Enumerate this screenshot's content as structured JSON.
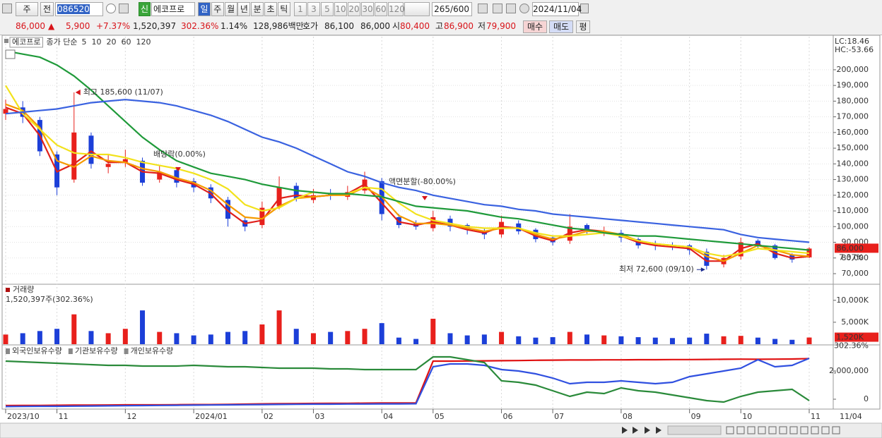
{
  "toolbar": {
    "market": "주",
    "mode": "전",
    "code": "086520",
    "badge": "신",
    "name": "에코프로",
    "periods": [
      "일",
      "주",
      "월",
      "년",
      "분",
      "초",
      "틱"
    ],
    "intervals": [
      "1",
      "3",
      "5",
      "10",
      "20",
      "30",
      "60",
      "120"
    ],
    "count": "265/600",
    "date": "2024/11/04"
  },
  "quote": {
    "items": [
      "86,000",
      "▲",
      "5,900",
      "+7.37%",
      "1,520,397",
      "302.36%",
      "1.14%",
      "128,986백만",
      "호가",
      "86,100",
      "86,000",
      "시",
      "80,400",
      "고",
      "86,900",
      "저",
      "79,900"
    ],
    "buttons": [
      "매수",
      "매도",
      "평"
    ]
  },
  "chart_data": [
    {
      "type": "candlestick",
      "title": "에코프로",
      "legend_title": "종가 단순",
      "lc_label": "LC:18.46",
      "hc_label": "HC:-53.66",
      "high_label": "최고 185,600 (11/07)",
      "low_label": "최저 72,600 (09/10)",
      "events": [
        "배당락(0.00%)",
        "액면분할(-80.00%)"
      ],
      "last_price_label": "86,000",
      "last_change_label": "7.37%",
      "cursor_date": "11/04",
      "up_color": "#e8201c",
      "down_color": "#1c3fd8",
      "grid": true,
      "categories": [
        "2023/10",
        null,
        null,
        "11",
        null,
        null,
        null,
        "12",
        null,
        null,
        null,
        "2024/01",
        null,
        null,
        null,
        "02",
        null,
        null,
        "03",
        null,
        null,
        null,
        "04",
        null,
        null,
        "05",
        null,
        null,
        null,
        "06",
        null,
        null,
        "07",
        null,
        null,
        null,
        "08",
        null,
        null,
        null,
        "09",
        null,
        null,
        "10",
        null,
        null,
        null,
        "11"
      ],
      "open": [
        172000,
        176000,
        168000,
        146000,
        130000,
        158000,
        138000,
        141000,
        142000,
        130000,
        136000,
        129000,
        125000,
        117000,
        104000,
        101000,
        113000,
        126000,
        117000,
        121000,
        119000,
        123000,
        129000,
        106000,
        102000,
        99000,
        105000,
        101000,
        97000,
        95000,
        102000,
        98000,
        93000,
        91000,
        101000,
        97000,
        96000,
        92000,
        89000,
        88000,
        88000,
        84000,
        76000,
        81000,
        91000,
        88000,
        82000,
        80400
      ],
      "high": [
        181000,
        180000,
        170000,
        148000,
        185600,
        160000,
        146000,
        149000,
        144000,
        139000,
        138000,
        131000,
        127000,
        119000,
        106000,
        116000,
        132000,
        128000,
        124000,
        124000,
        126000,
        135000,
        131000,
        108000,
        104000,
        110000,
        107000,
        102000,
        99000,
        107000,
        104000,
        99000,
        94000,
        108000,
        102000,
        100000,
        98000,
        93000,
        91000,
        90000,
        89000,
        86000,
        82000,
        93000,
        92000,
        89000,
        83000,
        86900
      ],
      "low": [
        168000,
        166000,
        145000,
        120000,
        128000,
        137000,
        134000,
        138000,
        126000,
        128000,
        125000,
        122000,
        115000,
        100000,
        97000,
        99000,
        111000,
        116000,
        115000,
        117000,
        117000,
        121000,
        104000,
        99000,
        98000,
        97000,
        97000,
        95000,
        92000,
        93000,
        95000,
        90000,
        88000,
        89000,
        95000,
        94000,
        90000,
        86000,
        85000,
        85000,
        82000,
        72600,
        74000,
        79000,
        86000,
        79000,
        77000,
        79900
      ],
      "close": [
        175000,
        170000,
        148000,
        125000,
        160000,
        140000,
        140000,
        143000,
        128000,
        135000,
        128000,
        125000,
        118000,
        105000,
        100000,
        112000,
        125000,
        118000,
        120000,
        120000,
        122000,
        130000,
        108000,
        101000,
        100000,
        106000,
        100000,
        98000,
        95000,
        103000,
        97000,
        92000,
        90000,
        100000,
        98000,
        97000,
        93000,
        88000,
        88000,
        87000,
        85000,
        75000,
        80000,
        90000,
        88000,
        80000,
        79000,
        86000
      ],
      "series": [
        {
          "name": "5",
          "color": "#e0201b",
          "values": [
            176000,
            172000,
            158000,
            135000,
            140000,
            148000,
            141000,
            141000,
            135000,
            134000,
            130000,
            127000,
            121000,
            110000,
            102000,
            104000,
            118000,
            120000,
            119000,
            120000,
            121000,
            127000,
            115000,
            103000,
            101000,
            103000,
            101000,
            98000,
            96000,
            100000,
            99000,
            94000,
            91000,
            96000,
            98000,
            97000,
            94000,
            90000,
            88000,
            87000,
            86000,
            78000,
            78000,
            86000,
            89000,
            83000,
            80000,
            81000
          ]
        },
        {
          "name": "10",
          "color": "#f59a00",
          "values": [
            178000,
            174000,
            163000,
            142000,
            138000,
            145000,
            142000,
            141000,
            137000,
            135000,
            131000,
            128000,
            123000,
            114000,
            106000,
            105000,
            113000,
            118000,
            119000,
            120000,
            120000,
            125000,
            119000,
            107000,
            102000,
            102000,
            101000,
            99000,
            97000,
            99000,
            99000,
            95000,
            92000,
            94000,
            97000,
            97000,
            95000,
            91000,
            89000,
            88000,
            87000,
            81000,
            78000,
            83000,
            88000,
            85000,
            82000,
            81000
          ]
        },
        {
          "name": "20",
          "color": "#f2e21c",
          "values": [
            190000,
            172000,
            162000,
            152000,
            147000,
            146000,
            146000,
            144000,
            141000,
            139000,
            137000,
            134000,
            130000,
            124000,
            114000,
            110000,
            112000,
            118000,
            122000,
            121000,
            121000,
            125000,
            124000,
            115000,
            108000,
            104000,
            102000,
            100000,
            99000,
            99000,
            99000,
            96000,
            94000,
            94000,
            95000,
            96000,
            94000,
            91000,
            89000,
            88000,
            87000,
            83000,
            81000,
            83000,
            86000,
            85000,
            84000,
            83000
          ]
        },
        {
          "name": "60",
          "color": "#1f9a3a",
          "values": [
            212000,
            210000,
            208000,
            203000,
            196000,
            187000,
            177000,
            167000,
            157000,
            149000,
            142000,
            138000,
            134000,
            132000,
            130000,
            127000,
            125000,
            123000,
            122000,
            121000,
            121000,
            120000,
            119000,
            116000,
            113000,
            112000,
            111000,
            110000,
            108000,
            106000,
            105000,
            103000,
            101000,
            99000,
            98000,
            96000,
            95000,
            94000,
            94000,
            93000,
            92000,
            91000,
            90000,
            89000,
            88000,
            87000,
            86000,
            85000
          ]
        },
        {
          "name": "120",
          "color": "#3a62e0",
          "values": [
            172000,
            173000,
            174000,
            175000,
            177000,
            179000,
            180000,
            181000,
            180000,
            179000,
            177000,
            174000,
            171000,
            167000,
            162000,
            157000,
            154000,
            150000,
            145000,
            140000,
            135000,
            132000,
            128000,
            125000,
            123000,
            120000,
            118000,
            116000,
            114000,
            113000,
            111000,
            110000,
            108000,
            107000,
            106000,
            105000,
            104000,
            103000,
            102000,
            101000,
            100000,
            99000,
            98000,
            95000,
            93000,
            92000,
            91000,
            90000
          ]
        }
      ],
      "ylim": [
        63700,
        221100
      ],
      "yticks": [
        {
          "value": 70000,
          "label": "70,000"
        },
        {
          "value": 80000,
          "label": "80,000"
        },
        {
          "value": 90000,
          "label": "90,000"
        },
        {
          "value": 100000,
          "label": "100,000"
        },
        {
          "value": 110000,
          "label": "110,000"
        },
        {
          "value": 120000,
          "label": "120,000"
        },
        {
          "value": 130000,
          "label": "130,000"
        },
        {
          "value": 140000,
          "label": "140,000"
        },
        {
          "value": 150000,
          "label": "150,000"
        },
        {
          "value": 160000,
          "label": "160,000"
        },
        {
          "value": 170000,
          "label": "170,000"
        },
        {
          "value": 180000,
          "label": "180,000"
        },
        {
          "value": 190000,
          "label": "190,000"
        },
        {
          "value": 200000,
          "label": "200,000"
        }
      ]
    },
    {
      "type": "bar",
      "title": "거래량",
      "subtitle": "1,520,397주(302.36%)",
      "ratio_label": "302.36%",
      "values": [
        2200,
        2500,
        3000,
        3500,
        6800,
        3000,
        2500,
        3500,
        7700,
        2800,
        2500,
        2000,
        2200,
        2800,
        3000,
        4500,
        7700,
        3500,
        2500,
        2800,
        3000,
        3500,
        4800,
        1500,
        1200,
        5800,
        2500,
        2000,
        2200,
        2800,
        1800,
        1500,
        1600,
        2800,
        2200,
        2000,
        1800,
        1600,
        1500,
        1400,
        1500,
        2400,
        1800,
        1900,
        1500,
        1200,
        1000,
        1520
      ],
      "value_labels": [
        null,
        null,
        null,
        null,
        null,
        null,
        null,
        null,
        null,
        null,
        null,
        null,
        null,
        null,
        null,
        null,
        null,
        null,
        null,
        null,
        null,
        null,
        null,
        null,
        null,
        null,
        null,
        null,
        null,
        null,
        null,
        null,
        null,
        null,
        null,
        null,
        null,
        null,
        null,
        null,
        null,
        null,
        null,
        null,
        null,
        null,
        null,
        "1,520K"
      ],
      "ylim": [
        0,
        13500
      ],
      "yticks": [
        {
          "value": 5000,
          "label": "5,000K"
        },
        {
          "value": 10000,
          "label": "10,000K"
        }
      ]
    },
    {
      "type": "line",
      "series": [
        {
          "name": "외국인보유수량",
          "color": "#e01010",
          "values": [
            -450000,
            -440000,
            -440000,
            -430000,
            -420000,
            -420000,
            -410000,
            -400000,
            -400000,
            -400000,
            -390000,
            -380000,
            -380000,
            -370000,
            -350000,
            -330000,
            -320000,
            -310000,
            -300000,
            -290000,
            -290000,
            -280000,
            -270000,
            -270000,
            -260000,
            2700000,
            2700000,
            2710000,
            2720000,
            2730000,
            2740000,
            2760000,
            2770000,
            2780000,
            2780000,
            2790000,
            2790000,
            2800000,
            2800000,
            2810000,
            2810000,
            2820000,
            2830000,
            2840000,
            2830000,
            2840000,
            2850000,
            2880000
          ]
        },
        {
          "name": "기관보유수량",
          "color": "#3050e0",
          "values": [
            -520000,
            -510000,
            -500000,
            -500000,
            -490000,
            -480000,
            -470000,
            -460000,
            -450000,
            -440000,
            -430000,
            -420000,
            -410000,
            -400000,
            -390000,
            -380000,
            -370000,
            -360000,
            -350000,
            -350000,
            -340000,
            -340000,
            -330000,
            -330000,
            -320000,
            2300000,
            2500000,
            2500000,
            2400000,
            2100000,
            2000000,
            1800000,
            1500000,
            1100000,
            1200000,
            1200000,
            1300000,
            1200000,
            1100000,
            1200000,
            1600000,
            1800000,
            2000000,
            2200000,
            2800000,
            2300000,
            2400000,
            2900000
          ]
        },
        {
          "name": "개인보유수량",
          "color": "#2a8a3a",
          "values": [
            2700000,
            2650000,
            2600000,
            2550000,
            2500000,
            2450000,
            2400000,
            2400000,
            2350000,
            2350000,
            2350000,
            2400000,
            2350000,
            2300000,
            2300000,
            2250000,
            2200000,
            2200000,
            2200000,
            2150000,
            2150000,
            2100000,
            2100000,
            2100000,
            2100000,
            3000000,
            3000000,
            2800000,
            2600000,
            1300000,
            1200000,
            1000000,
            600000,
            200000,
            500000,
            400000,
            800000,
            600000,
            500000,
            300000,
            100000,
            -100000,
            -200000,
            200000,
            500000,
            600000,
            700000,
            -100000
          ]
        }
      ],
      "ylim": [
        -600000,
        3700000
      ],
      "yticks": [
        0,
        {
          "value": 2000000,
          "label": "2,000,000"
        }
      ]
    }
  ]
}
